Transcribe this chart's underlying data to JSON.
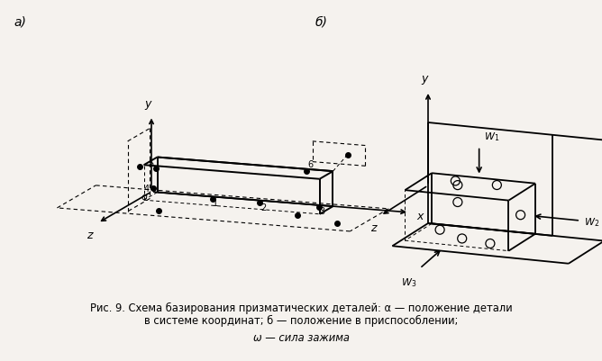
{
  "bg_color": "#f5f2ee",
  "caption_line1": "Рис. 9. Схема базирования призматических деталей: α — положение детали",
  "caption_line2": "в системе координат; б — положение в приспособлении;",
  "caption_line3": "ω — сила зажима",
  "fig_width": 6.68,
  "fig_height": 4.02,
  "dpi": 100
}
